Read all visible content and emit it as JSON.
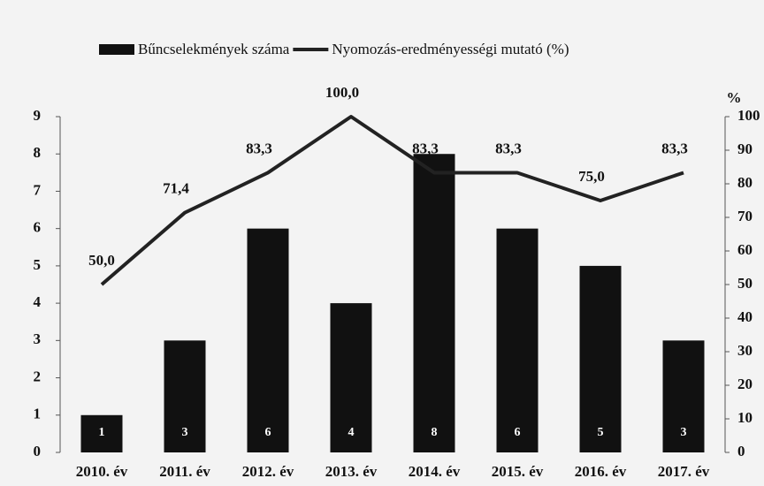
{
  "chart_data": {
    "type": "combo",
    "categories": [
      "2010. év",
      "2011. év",
      "2012. év",
      "2013. év",
      "2014. év",
      "2015. év",
      "2016. év",
      "2017. év"
    ],
    "series": [
      {
        "name": "Bűncselekmények száma",
        "type": "bar",
        "color": "#111111",
        "values": [
          1,
          3,
          6,
          4,
          8,
          6,
          5,
          3
        ]
      },
      {
        "name": "Nyomozás-eredményességi mutató (%)",
        "type": "line",
        "axis": "y2",
        "color": "#222222",
        "values": [
          50,
          71.4,
          83.3,
          100,
          83.3,
          83.3,
          75,
          83.3
        ],
        "value_labels": [
          "50,0",
          "71,4",
          "83,3",
          "100,0",
          "83,3",
          "83,3",
          "75,0",
          "83,3"
        ]
      }
    ],
    "ylim": [
      0,
      9
    ],
    "yticks": [
      0,
      1,
      2,
      3,
      4,
      5,
      6,
      7,
      8,
      9
    ],
    "y2lim": [
      0,
      100
    ],
    "y2ticks": [
      0,
      10,
      20,
      30,
      40,
      50,
      60,
      70,
      80,
      90,
      100
    ],
    "y2label": "%"
  }
}
